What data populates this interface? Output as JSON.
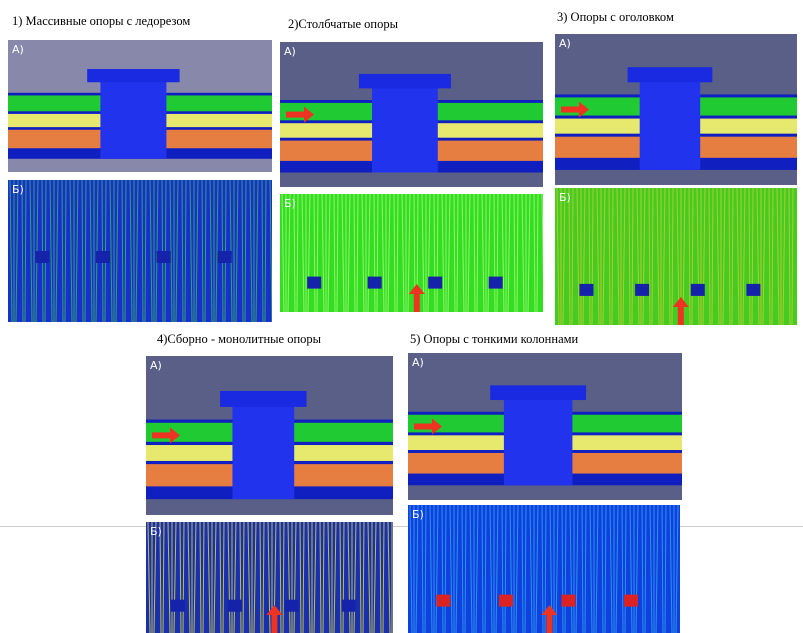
{
  "panels": [
    {
      "caption": "1) Массивные опоры с ледорезом",
      "label_a": "А)",
      "label_b": "Б)"
    },
    {
      "caption": "2)Столбчатые опоры",
      "label_a": "А)",
      "label_b": "Б)"
    },
    {
      "caption": "3) Опоры с оголовком",
      "label_a": "А)",
      "label_b": "Б)"
    },
    {
      "caption": "4)Сборно - монолитные опоры",
      "label_a": "А)",
      "label_b": "Б)"
    },
    {
      "caption": "5) Опоры с тонкими колоннами",
      "label_a": "А)",
      "label_b": "Б)"
    }
  ]
}
